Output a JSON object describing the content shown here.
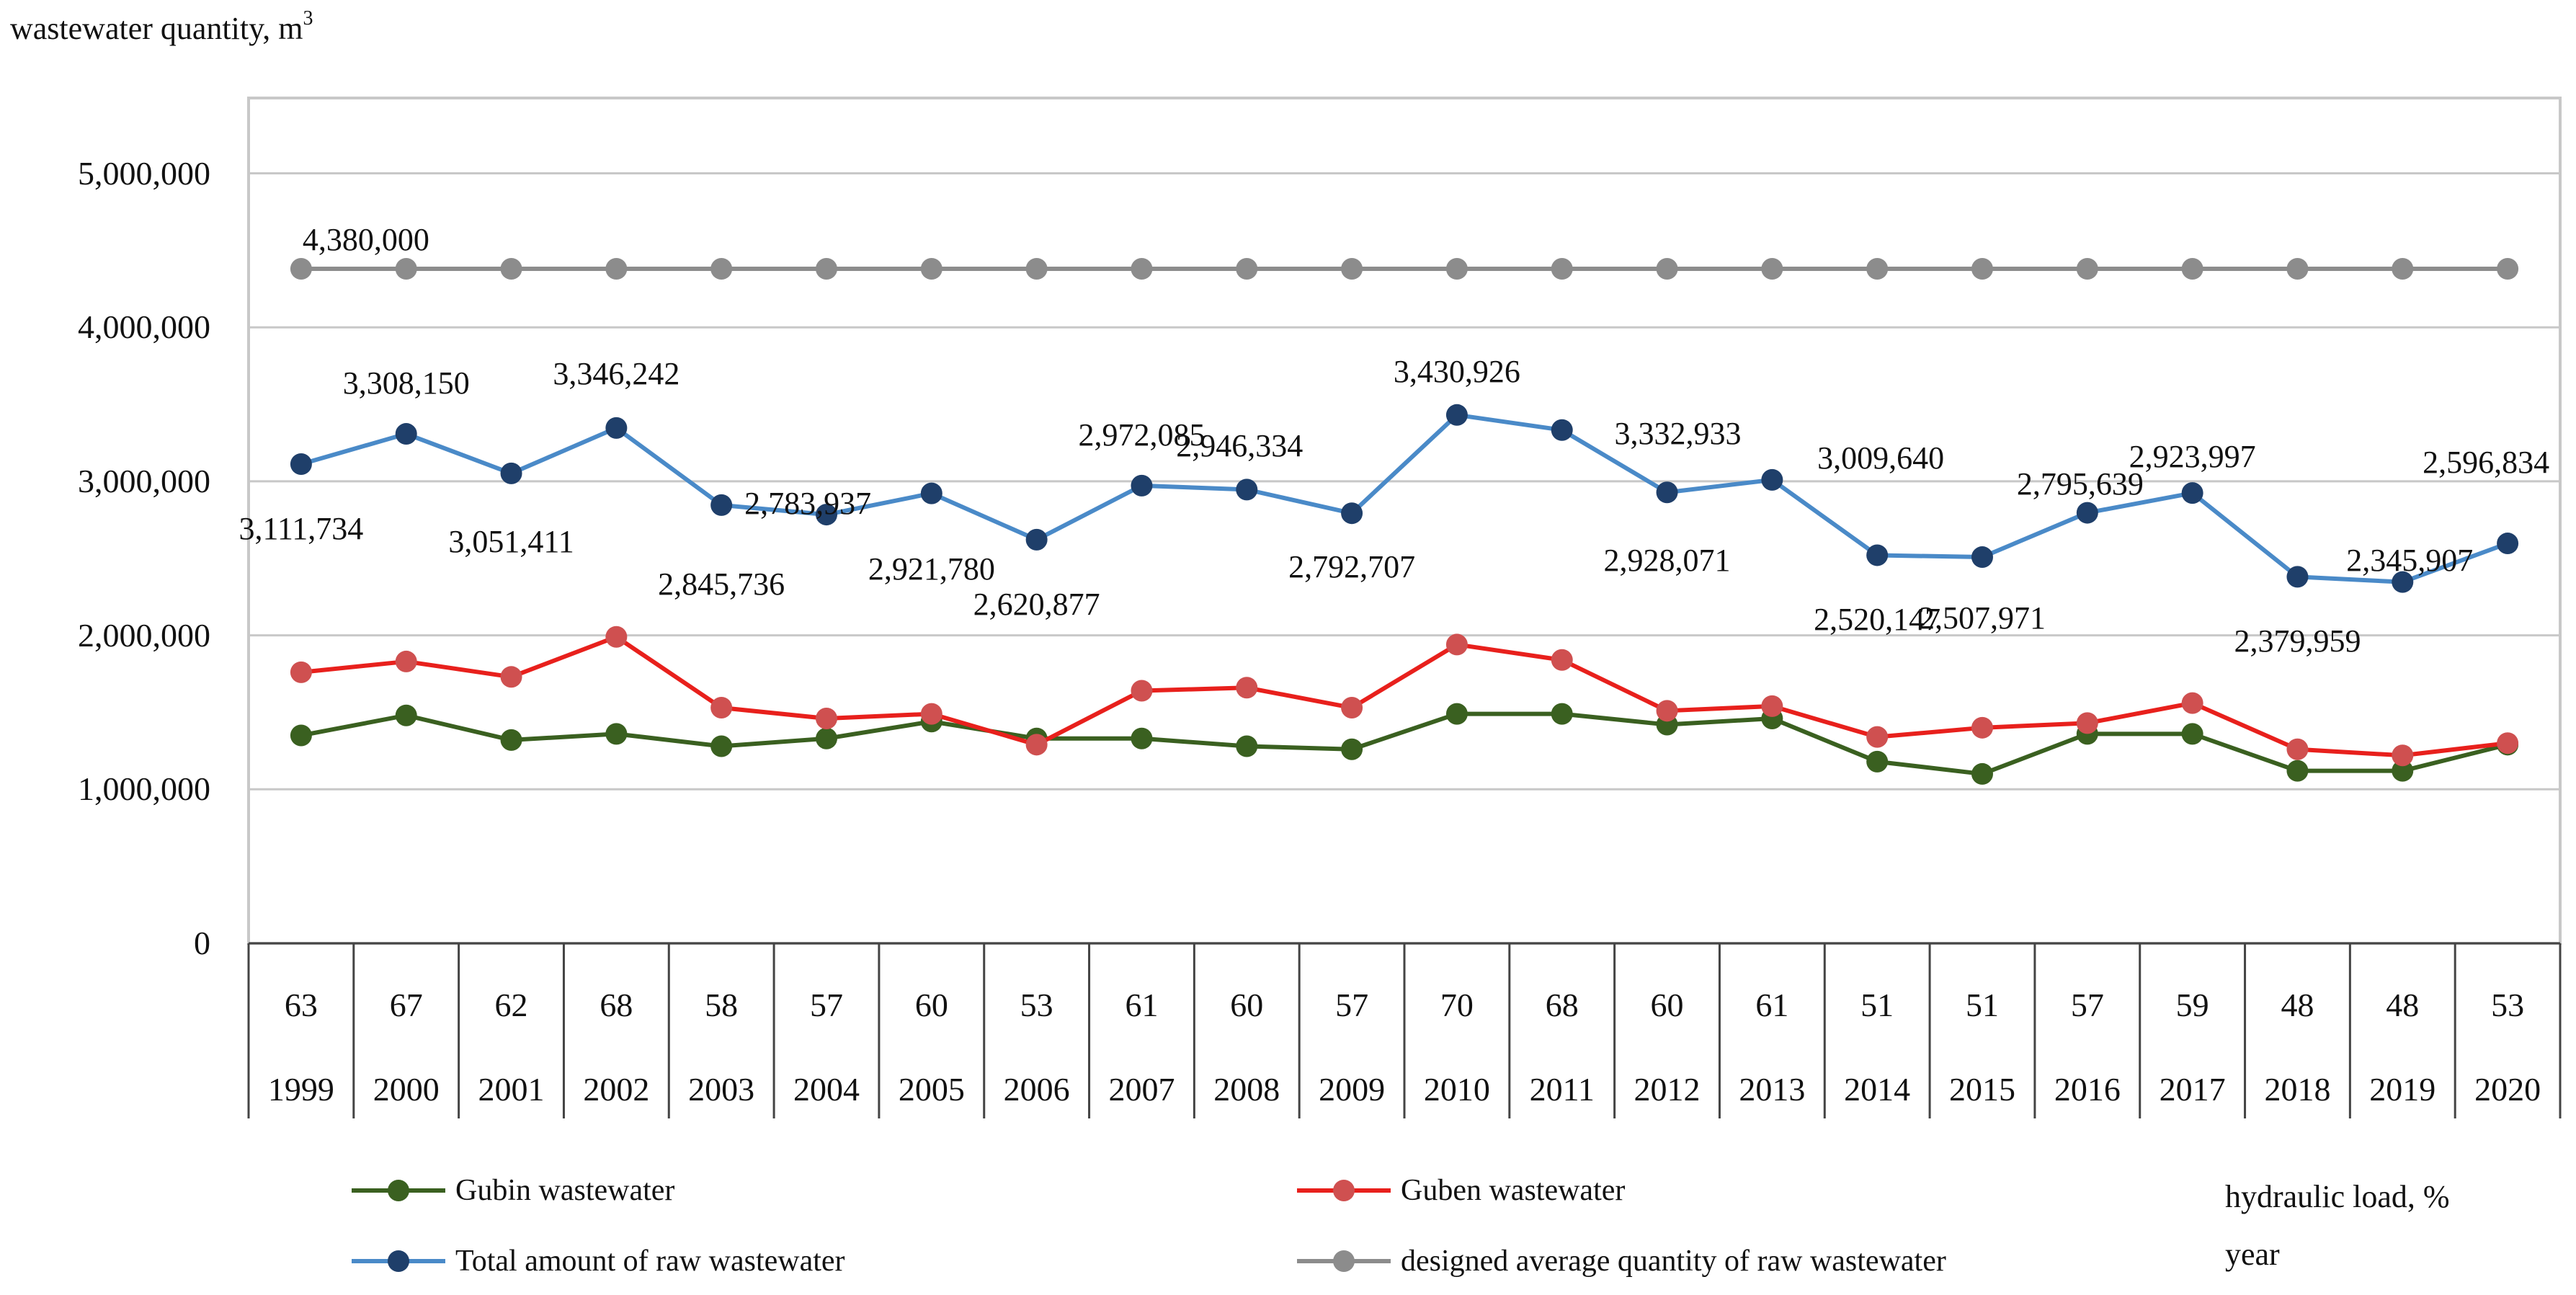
{
  "chart_data": {
    "type": "line",
    "ylabel": "wastewater quantity, m",
    "ylabel_sup": "3",
    "ylim": [
      0,
      5400000
    ],
    "y_ticks": [
      "0",
      "1,000,000",
      "2,000,000",
      "3,000,000",
      "4,000,000",
      "5,000,000"
    ],
    "y_tick_values": [
      0,
      1000000,
      2000000,
      3000000,
      4000000,
      5000000
    ],
    "grid": true,
    "categories": [
      "1999",
      "2000",
      "2001",
      "2002",
      "2003",
      "2004",
      "2005",
      "2006",
      "2007",
      "2008",
      "2009",
      "2010",
      "2011",
      "2012",
      "2013",
      "2014",
      "2015",
      "2016",
      "2017",
      "2018",
      "2019",
      "2020"
    ],
    "hydraulic_load": [
      "63",
      "67",
      "62",
      "68",
      "58",
      "57",
      "60",
      "53",
      "61",
      "60",
      "57",
      "70",
      "68",
      "60",
      "61",
      "51",
      "51",
      "57",
      "59",
      "48",
      "48",
      "53"
    ],
    "table_row_labels": [
      "hydraulic load, %",
      "year"
    ],
    "series": [
      {
        "name": "Gubin wastewater",
        "color": "#3a6020",
        "values": [
          1350000,
          1480000,
          1320000,
          1360000,
          1280000,
          1330000,
          1440000,
          1330000,
          1330000,
          1280000,
          1260000,
          1490000,
          1490000,
          1420000,
          1460000,
          1180000,
          1100000,
          1360000,
          1360000,
          1120000,
          1120000,
          1290000
        ]
      },
      {
        "name": "Guben wastewater",
        "color": "#e8201c",
        "values": [
          1760000,
          1830000,
          1730000,
          1990000,
          1530000,
          1460000,
          1490000,
          1290000,
          1640000,
          1660000,
          1530000,
          1940000,
          1840000,
          1510000,
          1540000,
          1340000,
          1400000,
          1430000,
          1560000,
          1260000,
          1220000,
          1300000
        ]
      },
      {
        "name": "Total amount of raw wastewater",
        "color": "#4a8ac8",
        "marker": "#1f3f6a",
        "values": [
          3111734,
          3308150,
          3051411,
          3346242,
          2845736,
          2783937,
          2921780,
          2620877,
          2972085,
          2946334,
          2792707,
          3430926,
          3332933,
          2928071,
          3009640,
          2520147,
          2507971,
          2795639,
          2923997,
          2379959,
          2345907,
          2596834
        ]
      },
      {
        "name": "designed average quantity of raw wastewater",
        "color": "#8c8c8c",
        "values": [
          4380000,
          4380000,
          4380000,
          4380000,
          4380000,
          4380000,
          4380000,
          4380000,
          4380000,
          4380000,
          4380000,
          4380000,
          4380000,
          4380000,
          4380000,
          4380000,
          4380000,
          4380000,
          4380000,
          4380000,
          4380000,
          4380000
        ]
      }
    ],
    "total_labels": [
      "3,111,734",
      "3,308,150",
      "3,051,411",
      "3,346,242",
      "2,845,736",
      "2,783,937",
      "2,921,780",
      "2,620,877",
      "2,972,085",
      "2,946,334",
      "2,792,707",
      "3,430,926",
      "3,332,933",
      "2,928,071",
      "3,009,640",
      "2,520,147",
      "2,507,971",
      "2,795,639",
      "2,923,997",
      "2,379,959",
      "2,345,907",
      "2,596,834"
    ],
    "designed_label": "4,380,000"
  }
}
